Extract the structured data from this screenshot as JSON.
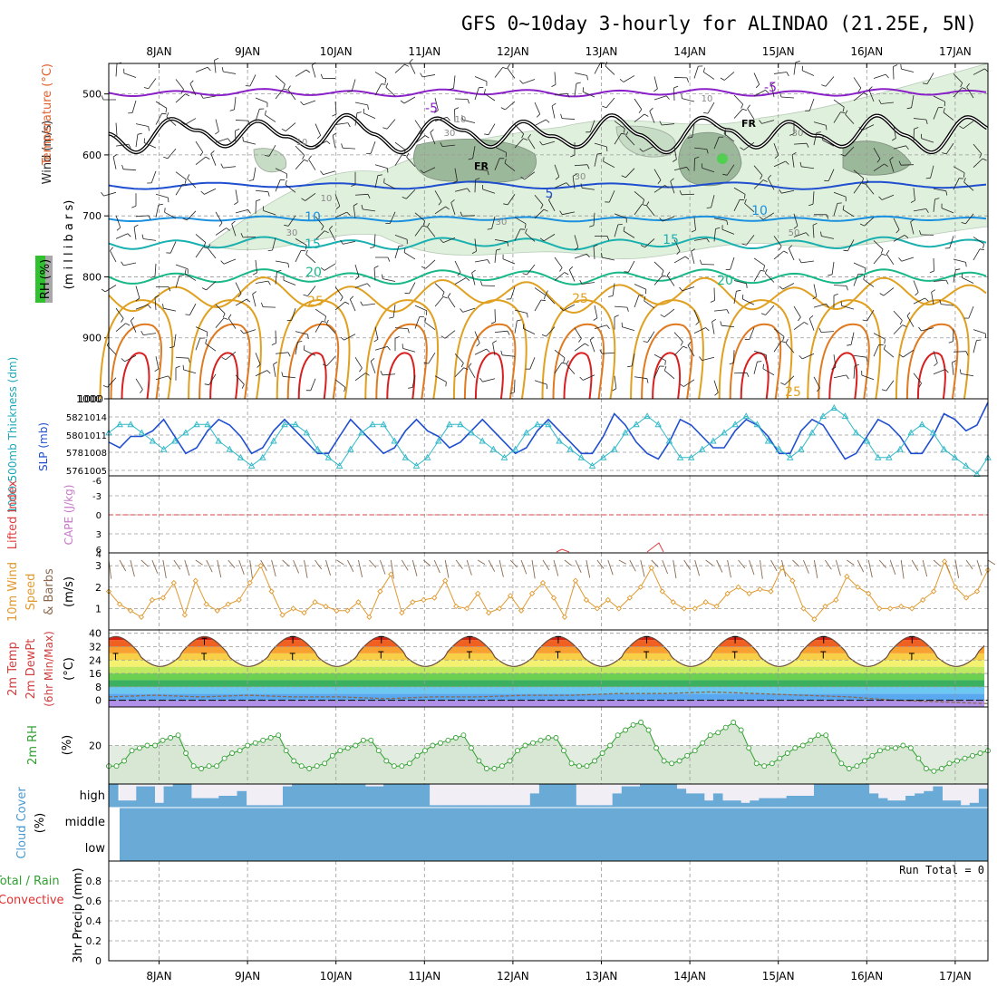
{
  "title": "GFS 0~10day 3-hourly for ALINDAO (21.25E, 5N)",
  "dates": [
    "8JAN",
    "9JAN",
    "10JAN",
    "11JAN",
    "12JAN",
    "13JAN",
    "14JAN",
    "15JAN",
    "16JAN",
    "17JAN"
  ],
  "colors": {
    "purple": "#8a20c8",
    "blue": "#1f4fd0",
    "lightblue": "#1a90e0",
    "teal": "#1ab0b0",
    "green": "#18b888",
    "orange": "#e0a020",
    "darkorange": "#e07a20",
    "red": "#d82020",
    "cyan": "#30b8c8",
    "rh_green": "#30a030",
    "cloud": "#6aaad6",
    "cloud_clear": "#f2eef6",
    "wind_orange": "#e09a30",
    "barb_brown": "#8a6a50"
  },
  "chart_data": [
    {
      "id": "upper",
      "type": "heatmap",
      "ylabel_parts": [
        "Wind",
        "(m/s)",
        "Temperature",
        "(°C)",
        "RH",
        "(%)",
        "(m i l l i b a r s)"
      ],
      "yticks": [
        500,
        600,
        700,
        800,
        900,
        1000
      ],
      "ylim": [
        1000,
        450
      ],
      "isotherm_labels": [
        {
          "value": "-5",
          "color": "purple"
        },
        {
          "value": "-5",
          "color": "purple"
        },
        {
          "value": "FR",
          "color": "black"
        },
        {
          "value": "FR",
          "color": "black"
        },
        {
          "value": "5",
          "color": "blue"
        },
        {
          "value": "10",
          "color": "lightblue"
        },
        {
          "value": "10",
          "color": "lightblue"
        },
        {
          "value": "15",
          "color": "teal"
        },
        {
          "value": "15",
          "color": "teal"
        },
        {
          "value": "20",
          "color": "green"
        },
        {
          "value": "20",
          "color": "green"
        },
        {
          "value": "25",
          "color": "orange"
        },
        {
          "value": "25",
          "color": "orange"
        },
        {
          "value": "25",
          "color": "orange"
        }
      ],
      "rh_labels": [
        "10",
        "10",
        "10",
        "10",
        "30",
        "30",
        "30",
        "30",
        "30",
        "50"
      ],
      "isotherm_levels": {
        "-5": 498,
        "FR": 565,
        "5": 650,
        "10": 705,
        "15": 745,
        "20": 800
      }
    },
    {
      "id": "thickness-slp",
      "type": "line",
      "ylabel": "1000-500mb Thickness (dm)",
      "ylabel2": "SLP (mb)",
      "left_ticks": [
        "582",
        "580",
        "578",
        "576"
      ],
      "right_ticks": [
        "1014",
        "1011",
        "1008",
        "1005"
      ],
      "slp_lim": [
        1003,
        1015
      ],
      "thickness_lim": [
        575,
        583
      ],
      "slp": [
        1008,
        1007,
        1009,
        1009,
        1010,
        1012,
        1009,
        1006,
        1007,
        1010,
        1012,
        1011,
        1009,
        1006,
        1007,
        1010,
        1012,
        1010,
        1008,
        1006,
        1006,
        1009,
        1012,
        1010,
        1008,
        1006,
        1007,
        1010,
        1012,
        1010,
        1009,
        1007,
        1008,
        1010,
        1012,
        1010,
        1008,
        1006,
        1007,
        1010,
        1012,
        1010,
        1008,
        1006,
        1006,
        1009,
        1013,
        1011,
        1008,
        1006,
        1005,
        1008,
        1012,
        1011,
        1009,
        1007,
        1007,
        1010,
        1012,
        1011,
        1009,
        1006,
        1006,
        1010,
        1012,
        1011,
        1008,
        1005,
        1006,
        1009,
        1012,
        1011,
        1009,
        1006,
        1006,
        1009,
        1013,
        1012,
        1010,
        1011,
        1015
      ],
      "thickness": [
        580,
        581,
        581,
        580,
        579,
        578,
        579,
        580,
        581,
        581,
        579,
        578,
        577,
        576,
        577,
        579,
        581,
        581,
        580,
        578,
        577,
        576,
        578,
        580,
        581,
        581,
        579,
        577,
        576,
        577,
        579,
        581,
        581,
        580,
        579,
        578,
        577,
        578,
        580,
        581,
        581,
        579,
        578,
        577,
        576,
        577,
        578,
        580,
        581,
        582,
        581,
        579,
        577,
        577,
        578,
        579,
        580,
        581,
        582,
        581,
        579,
        578,
        577,
        578,
        580,
        582,
        583,
        582,
        580,
        579,
        577,
        577,
        578,
        580,
        581,
        580,
        578,
        577,
        576,
        575,
        577
      ]
    },
    {
      "id": "lifted-cape",
      "type": "line",
      "ylabel": "Lifted Index",
      "ylabel2": "CAPE (J/kg)",
      "left_ticks": [
        "-6",
        "-3",
        "0",
        "3",
        "6"
      ],
      "right_ticks": [
        "4"
      ],
      "li_lim": [
        -6,
        6
      ],
      "zero_line": 0
    },
    {
      "id": "wind10m",
      "type": "line",
      "ylabel_parts": [
        "10m Wind",
        "Speed",
        "& Barbs",
        "(m/s)"
      ],
      "yticks": [
        "1",
        "2",
        "3"
      ],
      "ylim": [
        0,
        3.6
      ],
      "speed": [
        1.8,
        1.2,
        0.9,
        0.6,
        1.4,
        1.5,
        2.2,
        0.7,
        2.3,
        1.2,
        0.9,
        1.2,
        1.4,
        2.2,
        3.0,
        1.8,
        0.7,
        1.0,
        0.8,
        1.3,
        1.1,
        0.9,
        0.9,
        1.3,
        0.6,
        1.8,
        2.6,
        0.8,
        1.3,
        1.4,
        1.5,
        2.3,
        1.1,
        1.0,
        1.7,
        0.8,
        1.0,
        1.6,
        0.9,
        1.7,
        2.2,
        1.5,
        0.6,
        2.3,
        1.4,
        1.0,
        1.4,
        1.0,
        1.5,
        2.0,
        2.9,
        1.8,
        1.3,
        1.0,
        1.0,
        1.3,
        1.1,
        1.7,
        2.0,
        1.7,
        1.9,
        1.8,
        2.9,
        2.3,
        1.0,
        0.5,
        1.1,
        1.4,
        2.5,
        2.0,
        1.7,
        1.0,
        1.0,
        1.1,
        1.0,
        1.4,
        1.8,
        3.2,
        2.0,
        1.5,
        1.8,
        2.8
      ]
    },
    {
      "id": "temp2m",
      "type": "area",
      "ylabel_parts": [
        "2m Temp",
        "2m DewPt",
        "(6hr Min/Max)",
        "(°C)"
      ],
      "yticks": [
        "0",
        "8",
        "16",
        "24",
        "32",
        "40"
      ],
      "ylim": [
        -4,
        42
      ],
      "bands": [
        {
          "from": -4,
          "to": 0,
          "color": "#b090e8"
        },
        {
          "from": 0,
          "to": 4,
          "color": "#5aa8f0"
        },
        {
          "from": 4,
          "to": 8,
          "color": "#6cc8f0"
        },
        {
          "from": 8,
          "to": 12,
          "color": "#3ab060"
        },
        {
          "from": 12,
          "to": 16,
          "color": "#6cd050"
        },
        {
          "from": 16,
          "to": 20,
          "color": "#c0e860"
        },
        {
          "from": 20,
          "to": 24,
          "color": "#f4f070"
        },
        {
          "from": 24,
          "to": 28,
          "color": "#f8d048"
        },
        {
          "from": 28,
          "to": 32,
          "color": "#f8a030"
        },
        {
          "from": 32,
          "to": 36,
          "color": "#f06020"
        },
        {
          "from": 36,
          "to": 40,
          "color": "#d82010"
        },
        {
          "from": 40,
          "to": 44,
          "color": "#901010"
        }
      ],
      "temp_max": [
        37,
        38,
        38,
        38,
        38,
        38,
        38,
        38,
        38
      ],
      "temp_min": [
        20,
        20,
        20,
        21,
        21,
        21,
        21,
        21,
        21,
        20
      ],
      "dewpoint": [
        2,
        3,
        2,
        3,
        2,
        2,
        1,
        2,
        2,
        3,
        3,
        4,
        4,
        5,
        4,
        3,
        2,
        0,
        -1,
        -2
      ]
    },
    {
      "id": "rh2m",
      "type": "area",
      "ylabel_parts": [
        "2m RH",
        "(%)"
      ],
      "yticks": [
        "20"
      ],
      "ylim": [
        5,
        35
      ],
      "rh": [
        12,
        12,
        14,
        18,
        19,
        20,
        20,
        22,
        23,
        24,
        17,
        12,
        11,
        12,
        12,
        15,
        17,
        18,
        20,
        21,
        22,
        23,
        24,
        18,
        14,
        12,
        11,
        12,
        13,
        16,
        18,
        19,
        20,
        22,
        22,
        18,
        14,
        12,
        12,
        13,
        16,
        18,
        20,
        21,
        22,
        23,
        24,
        19,
        14,
        11,
        11,
        12,
        14,
        18,
        20,
        21,
        22,
        23,
        23,
        18,
        13,
        12,
        12,
        14,
        17,
        20,
        24,
        26,
        28,
        29,
        26,
        19,
        14,
        13,
        14,
        16,
        18,
        21,
        24,
        25,
        27,
        29,
        26,
        19,
        13,
        12,
        13,
        15,
        17,
        19,
        20,
        22,
        24,
        24,
        18,
        13,
        11,
        12,
        14,
        16,
        18,
        19,
        19,
        20,
        19,
        15,
        11,
        10,
        11,
        13,
        14,
        15,
        16,
        17,
        18
      ]
    },
    {
      "id": "cloud",
      "type": "bar",
      "ylabel": "Cloud Cover",
      "ylabel2": "(%)",
      "levels": [
        "high",
        "middle",
        "low"
      ],
      "high": [
        1,
        0.3,
        0.3,
        0.9,
        0.9,
        0.2,
        0.9,
        1,
        1,
        0.4,
        0.4,
        0.4,
        0.5,
        0.5,
        0.7,
        0.1,
        0.1,
        0.1,
        0.1,
        0.9,
        1,
        1,
        1,
        1,
        1,
        1,
        1,
        1,
        0.9,
        0.9,
        1,
        1,
        1,
        1,
        1,
        0.1,
        0.1,
        0.1,
        0.1,
        0.1,
        0.1,
        0.1,
        0.1,
        0.1,
        0.1,
        0.1,
        0.6,
        1,
        1,
        1,
        1,
        0.1,
        0.1,
        0.1,
        0.1,
        0.6,
        0.9,
        0.9,
        1,
        1,
        1,
        1,
        0.8,
        0.6,
        0.6,
        0.3,
        0.6,
        0.3,
        0.3,
        0.2,
        0.3,
        0.4,
        0.4,
        0.4,
        0.5,
        0.5,
        0.5,
        1,
        1,
        1,
        1,
        1,
        1,
        0.6,
        0.4,
        0.3,
        0.3,
        0.5,
        0.6,
        0.7,
        0.9,
        0.3,
        0.3,
        0.1,
        0.2,
        0.8
      ],
      "middle": 1,
      "low": 1
    },
    {
      "id": "precip",
      "type": "bar",
      "ylabel": "3hr Precip (mm)",
      "side_labels": [
        "Total / Rain",
        "Convective"
      ],
      "yticks": [
        "0",
        "0.2",
        "0.4",
        "0.6",
        "0.8"
      ],
      "ylim": [
        0,
        1
      ],
      "values": [],
      "run_total": "Run Total = 0"
    }
  ]
}
